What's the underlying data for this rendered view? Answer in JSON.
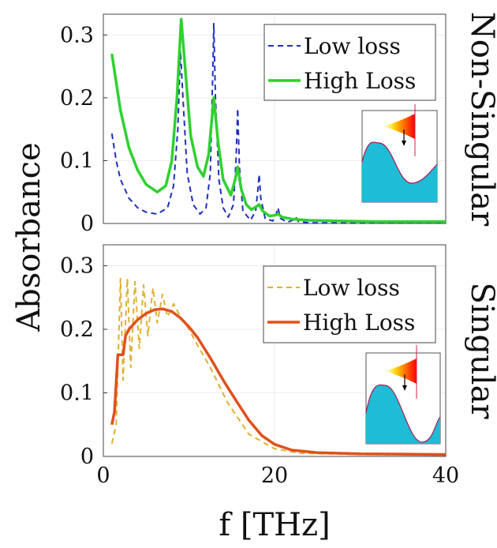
{
  "chart_data": [
    {
      "type": "line",
      "panel_label": "Non-Singular",
      "xlabel": "f [THz]",
      "ylabel": "Absorbance",
      "xlim": [
        0,
        40
      ],
      "ylim": [
        0,
        0.333
      ],
      "xticks": [
        "0",
        "20",
        "40"
      ],
      "yticks": [
        "0",
        "0.1",
        "0.2",
        "0.3"
      ],
      "grid": true,
      "legend": "top-right",
      "series": [
        {
          "name": "Low loss",
          "style": "dashed",
          "color": "#1f2fbf",
          "x": [
            1,
            1.5,
            2,
            3,
            4,
            5,
            6.3,
            7.5,
            8.2,
            8.7,
            9,
            9.3,
            9.8,
            10.5,
            11.3,
            12,
            12.5,
            12.8,
            12.9,
            13.1,
            13.5,
            14,
            14.6,
            15.2,
            15.5,
            15.7,
            15.9,
            16.3,
            17.2,
            17.8,
            18.1,
            18.2,
            18.4,
            18.9,
            19.8,
            20.2,
            20.4,
            20.7,
            21.5,
            22.3,
            22.5,
            22.8,
            24,
            30,
            40
          ],
          "y": [
            0.143,
            0.1,
            0.07,
            0.04,
            0.025,
            0.018,
            0.015,
            0.025,
            0.06,
            0.15,
            0.275,
            0.2,
            0.08,
            0.03,
            0.015,
            0.025,
            0.08,
            0.25,
            0.318,
            0.2,
            0.07,
            0.025,
            0.01,
            0.03,
            0.1,
            0.183,
            0.09,
            0.02,
            0.005,
            0.02,
            0.06,
            0.078,
            0.04,
            0.008,
            0.004,
            0.015,
            0.025,
            0.008,
            0.002,
            0.006,
            0.01,
            0.003,
            0.001,
            0.001,
            0.001
          ]
        },
        {
          "name": "High Loss",
          "style": "solid",
          "color": "#2fd12f",
          "x": [
            1,
            2,
            3,
            4,
            5,
            6.3,
            7.3,
            8,
            8.6,
            9.1,
            9.6,
            10.2,
            11,
            11.7,
            12.3,
            12.9,
            13.4,
            14,
            14.9,
            15.4,
            15.7,
            16.1,
            16.7,
            17.3,
            17.9,
            18.2,
            18.6,
            19.4,
            20,
            20.4,
            20.9,
            22,
            24,
            27,
            32,
            40
          ],
          "y": [
            0.27,
            0.18,
            0.12,
            0.085,
            0.062,
            0.05,
            0.06,
            0.1,
            0.2,
            0.325,
            0.24,
            0.14,
            0.09,
            0.075,
            0.11,
            0.2,
            0.13,
            0.07,
            0.045,
            0.07,
            0.09,
            0.055,
            0.03,
            0.022,
            0.027,
            0.03,
            0.02,
            0.012,
            0.013,
            0.015,
            0.01,
            0.007,
            0.005,
            0.004,
            0.003,
            0.003
          ]
        }
      ]
    },
    {
      "type": "line",
      "panel_label": "Singular",
      "xlabel": "f [THz]",
      "ylabel": "Absorbance",
      "xlim": [
        0,
        40
      ],
      "ylim": [
        0,
        0.333
      ],
      "xticks": [
        "0",
        "20",
        "40"
      ],
      "yticks": [
        "0",
        "0.1",
        "0.2",
        "0.3"
      ],
      "grid": true,
      "legend": "top-right",
      "series": [
        {
          "name": "Low loss",
          "style": "dashed",
          "color": "#e0b030",
          "x": [
            1,
            1.5,
            2,
            2.3,
            2.8,
            3.2,
            3.7,
            4.2,
            4.7,
            5.2,
            5.8,
            6.3,
            6.9,
            7.5,
            8.2,
            9,
            10,
            11,
            12.5,
            14.5,
            17,
            20,
            23,
            30,
            40
          ],
          "y": [
            0.02,
            0.05,
            0.28,
            0.12,
            0.28,
            0.14,
            0.275,
            0.17,
            0.27,
            0.19,
            0.265,
            0.21,
            0.255,
            0.22,
            0.24,
            0.22,
            0.2,
            0.175,
            0.14,
            0.085,
            0.035,
            0.012,
            0.005,
            0.003,
            0.002
          ]
        },
        {
          "name": "High Loss",
          "style": "solid",
          "color": "#e0501a",
          "x": [
            1,
            1.3,
            1.7,
            2.3,
            2.6,
            3,
            4,
            5,
            6,
            7,
            8,
            9,
            10,
            11,
            12.5,
            14,
            15.5,
            17,
            18.5,
            20,
            22,
            25,
            30,
            40
          ],
          "y": [
            0.05,
            0.07,
            0.16,
            0.16,
            0.19,
            0.2,
            0.215,
            0.225,
            0.231,
            0.232,
            0.228,
            0.218,
            0.204,
            0.187,
            0.155,
            0.12,
            0.088,
            0.057,
            0.033,
            0.019,
            0.01,
            0.006,
            0.004,
            0.003
          ]
        }
      ]
    }
  ]
}
